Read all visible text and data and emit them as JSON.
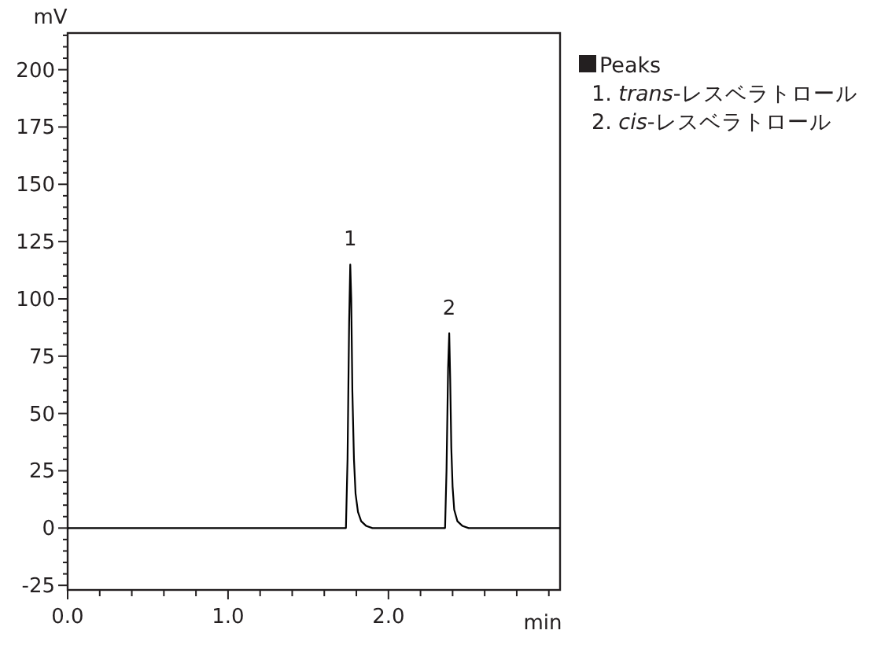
{
  "chart_data": {
    "type": "line",
    "xlabel": "min",
    "ylabel": "mV",
    "x": [
      0,
      1.73,
      1.735,
      1.745,
      1.755,
      1.762,
      1.768,
      1.775,
      1.785,
      1.795,
      1.81,
      1.83,
      1.86,
      1.9,
      2.35,
      2.353,
      2.362,
      2.372,
      2.379,
      2.385,
      2.392,
      2.4,
      2.41,
      2.43,
      2.46,
      2.5,
      3.07
    ],
    "series": [
      {
        "color": "#000000",
        "values": [
          0,
          0,
          0,
          30,
          90,
          115,
          100,
          60,
          30,
          15,
          7,
          3,
          1,
          0,
          0,
          0,
          25,
          70,
          85,
          65,
          35,
          18,
          8,
          3,
          1,
          0,
          0
        ]
      }
    ],
    "xlim": [
      0,
      3.07
    ],
    "ylim": [
      -27,
      216
    ],
    "xticks": [
      {
        "value": 0,
        "label": "0.0"
      },
      {
        "value": 0.2,
        "label": null
      },
      {
        "value": 0.4,
        "label": null
      },
      {
        "value": 0.6,
        "label": null
      },
      {
        "value": 0.8,
        "label": null
      },
      {
        "value": 1,
        "label": "1.0"
      },
      {
        "value": 1.2,
        "label": null
      },
      {
        "value": 1.4,
        "label": null
      },
      {
        "value": 1.6,
        "label": null
      },
      {
        "value": 1.8,
        "label": null
      },
      {
        "value": 2,
        "label": "2.0"
      },
      {
        "value": 2.2,
        "label": null
      },
      {
        "value": 2.4,
        "label": null
      },
      {
        "value": 2.6,
        "label": null
      },
      {
        "value": 2.8,
        "label": null
      },
      {
        "value": 3,
        "label": null
      }
    ],
    "yticks": [
      -25,
      {
        "value": -20,
        "label": null
      },
      {
        "value": -15,
        "label": null
      },
      {
        "value": -10,
        "label": null
      },
      {
        "value": -5,
        "label": null
      },
      0,
      {
        "value": 5,
        "label": null
      },
      {
        "value": 10,
        "label": null
      },
      {
        "value": 15,
        "label": null
      },
      {
        "value": 20,
        "label": null
      },
      25,
      {
        "value": 30,
        "label": null
      },
      {
        "value": 35,
        "label": null
      },
      {
        "value": 40,
        "label": null
      },
      {
        "value": 45,
        "label": null
      },
      50,
      {
        "value": 55,
        "label": null
      },
      {
        "value": 60,
        "label": null
      },
      {
        "value": 65,
        "label": null
      },
      {
        "value": 70,
        "label": null
      },
      75,
      {
        "value": 80,
        "label": null
      },
      {
        "value": 85,
        "label": null
      },
      {
        "value": 90,
        "label": null
      },
      {
        "value": 95,
        "label": null
      },
      100,
      {
        "value": 105,
        "label": null
      },
      {
        "value": 110,
        "label": null
      },
      {
        "value": 115,
        "label": null
      },
      {
        "value": 120,
        "label": null
      },
      125,
      {
        "value": 130,
        "label": null
      },
      {
        "value": 135,
        "label": null
      },
      {
        "value": 140,
        "label": null
      },
      {
        "value": 145,
        "label": null
      },
      150,
      {
        "value": 155,
        "label": null
      },
      {
        "value": 160,
        "label": null
      },
      {
        "value": 165,
        "label": null
      },
      {
        "value": 170,
        "label": null
      },
      175,
      {
        "value": 180,
        "label": null
      },
      {
        "value": 185,
        "label": null
      },
      {
        "value": 190,
        "label": null
      },
      {
        "value": 195,
        "label": null
      },
      200,
      {
        "value": 205,
        "label": null
      },
      {
        "value": 210,
        "label": null
      },
      {
        "value": 215,
        "label": null
      }
    ],
    "grid": false,
    "marker": "none",
    "line_style": "solid",
    "annotations": [
      {
        "text": "1",
        "x": 1.762,
        "y": 115
      },
      {
        "text": "2",
        "x": 2.379,
        "y": 85
      },
      "Peaks",
      "1. *trans*-レスベラトロール",
      "2. *cis*-レスベラトロール"
    ]
  }
}
